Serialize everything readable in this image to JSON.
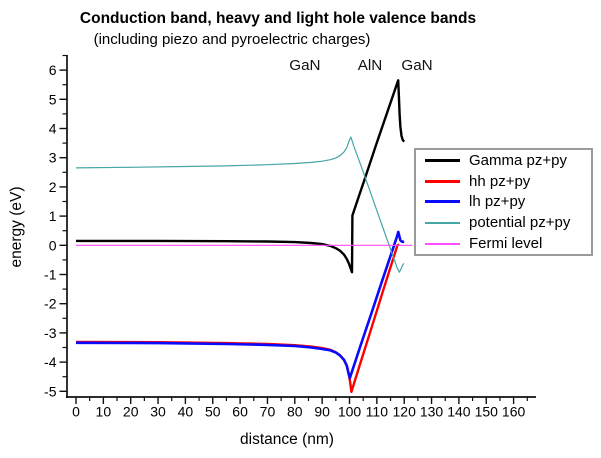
{
  "header": {
    "title": "Conduction band, heavy and light hole valence bands",
    "subtitle": "(including piezo and pyroelectric charges)"
  },
  "chart_data": {
    "type": "line",
    "title": "Conduction band, heavy and light hole valence bands",
    "subtitle": "(including piezo and pyroelectric charges)",
    "xlabel": "distance (nm)",
    "ylabel": "energy (eV)",
    "xlim": [
      0,
      168
    ],
    "ylim": [
      -5.2,
      6.5
    ],
    "grid": false,
    "legend_position": "right-middle",
    "x_ticks": [
      0,
      10,
      20,
      30,
      40,
      50,
      60,
      70,
      80,
      90,
      100,
      110,
      120,
      130,
      140,
      150,
      160
    ],
    "x_minor_ticks": [
      5,
      15,
      25,
      35,
      45,
      55,
      65,
      75,
      85,
      95,
      105,
      115,
      125,
      135,
      145,
      155,
      165
    ],
    "y_ticks": [
      6,
      5,
      4,
      3,
      2,
      1,
      0,
      -1,
      -2,
      -3,
      -4,
      -5
    ],
    "y_minor_ticks": [
      6.5,
      5.5,
      4.5,
      3.5,
      2.5,
      1.5,
      0.5,
      -0.5,
      -1.5,
      -2.5,
      -3.5,
      -4.5
    ],
    "annotations": [
      {
        "label": "GaN",
        "x": 83.7
      },
      {
        "label": "AlN",
        "x": 107.5
      },
      {
        "label": "GaN",
        "x": 124.7
      }
    ],
    "series": [
      {
        "name": "Gamma pz+py",
        "color": "#000000",
        "width": 2.4,
        "points": [
          [
            0,
            0.15
          ],
          [
            30,
            0.15
          ],
          [
            55,
            0.14
          ],
          [
            70,
            0.13
          ],
          [
            80,
            0.11
          ],
          [
            86,
            0.08
          ],
          [
            90,
            0.04
          ],
          [
            93,
            -0.02
          ],
          [
            95,
            -0.1
          ],
          [
            96.5,
            -0.18
          ],
          [
            98,
            -0.32
          ],
          [
            99,
            -0.47
          ],
          [
            99.8,
            -0.63
          ],
          [
            100.5,
            -0.82
          ],
          [
            100.9,
            -0.92
          ],
          [
            101.05,
            1.02
          ],
          [
            103,
            1.56
          ],
          [
            106,
            2.39
          ],
          [
            110,
            3.51
          ],
          [
            114,
            4.61
          ],
          [
            117.8,
            5.65
          ],
          [
            118.05,
            5.1
          ],
          [
            118.3,
            4.5
          ],
          [
            118.6,
            4.05
          ],
          [
            119,
            3.75
          ],
          [
            119.5,
            3.6
          ],
          [
            120,
            3.55
          ]
        ]
      },
      {
        "name": "hh pz+py",
        "color": "#ff0000",
        "width": 2.4,
        "points": [
          [
            0,
            -3.31
          ],
          [
            30,
            -3.32
          ],
          [
            55,
            -3.35
          ],
          [
            70,
            -3.38
          ],
          [
            80,
            -3.42
          ],
          [
            86,
            -3.47
          ],
          [
            90,
            -3.52
          ],
          [
            93,
            -3.58
          ],
          [
            95,
            -3.66
          ],
          [
            96.5,
            -3.76
          ],
          [
            98,
            -3.93
          ],
          [
            99,
            -4.13
          ],
          [
            99.8,
            -4.43
          ],
          [
            100.3,
            -4.73
          ],
          [
            100.7,
            -5.02
          ],
          [
            104,
            -4.03
          ],
          [
            108,
            -2.84
          ],
          [
            112,
            -1.64
          ],
          [
            116,
            -0.45
          ],
          [
            117.5,
            0.0
          ],
          [
            118.2,
            0.03
          ]
        ]
      },
      {
        "name": "lh pz+py",
        "color": "#0a0aff",
        "width": 2.6,
        "points": [
          [
            0,
            -3.34
          ],
          [
            30,
            -3.35
          ],
          [
            55,
            -3.38
          ],
          [
            70,
            -3.41
          ],
          [
            80,
            -3.45
          ],
          [
            86,
            -3.5
          ],
          [
            90,
            -3.55
          ],
          [
            93,
            -3.6
          ],
          [
            95,
            -3.67
          ],
          [
            96.5,
            -3.77
          ],
          [
            98,
            -3.92
          ],
          [
            99,
            -4.12
          ],
          [
            99.6,
            -4.37
          ],
          [
            100.1,
            -4.55
          ],
          [
            104,
            -3.45
          ],
          [
            108,
            -2.33
          ],
          [
            112,
            -1.2
          ],
          [
            116,
            -0.08
          ],
          [
            117.3,
            0.28
          ],
          [
            117.85,
            0.46
          ],
          [
            118.2,
            0.32
          ],
          [
            118.6,
            0.17
          ],
          [
            119.3,
            0.12
          ],
          [
            120,
            0.12
          ]
        ]
      },
      {
        "name": "potential pz+py",
        "color": "#46a5a5",
        "width": 1.2,
        "points": [
          [
            0,
            2.65
          ],
          [
            20,
            2.67
          ],
          [
            40,
            2.7
          ],
          [
            55,
            2.72
          ],
          [
            70,
            2.76
          ],
          [
            80,
            2.8
          ],
          [
            86,
            2.84
          ],
          [
            90,
            2.88
          ],
          [
            93,
            2.93
          ],
          [
            95,
            2.99
          ],
          [
            96.5,
            3.07
          ],
          [
            98,
            3.2
          ],
          [
            99,
            3.35
          ],
          [
            99.9,
            3.58
          ],
          [
            100.5,
            3.71
          ],
          [
            101.5,
            3.42
          ],
          [
            104,
            2.78
          ],
          [
            108,
            1.72
          ],
          [
            112,
            0.66
          ],
          [
            116,
            -0.4
          ],
          [
            117.4,
            -0.77
          ],
          [
            118.2,
            -0.92
          ],
          [
            118.8,
            -0.82
          ],
          [
            119.4,
            -0.68
          ],
          [
            119.9,
            -0.62
          ]
        ]
      },
      {
        "name": "Fermi level",
        "color": "#ff4dff",
        "width": 1.2,
        "points": [
          [
            0,
            0.0
          ],
          [
            123,
            0.0
          ]
        ]
      }
    ]
  }
}
